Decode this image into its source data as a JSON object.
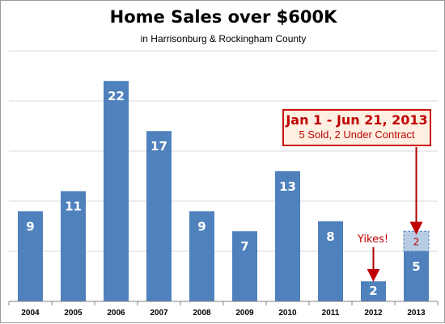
{
  "chart_data": {
    "type": "bar",
    "title": "Home Sales over $600K",
    "subtitle": "in Harrisonburg & Rockingham County",
    "categories": [
      "2004",
      "2005",
      "2006",
      "2007",
      "2008",
      "2009",
      "2010",
      "2011",
      "2012",
      "2013"
    ],
    "values": [
      9,
      11,
      22,
      17,
      9,
      7,
      13,
      8,
      2,
      5
    ],
    "stacked_extra": {
      "category": "2013",
      "value": 2,
      "label": "2"
    },
    "ylim": [
      0,
      25
    ],
    "grid": true,
    "xlabel": "",
    "ylabel": "",
    "colors": {
      "bar": "#4f81bd",
      "extra_fill": "#b8cce4",
      "extra_border": "#4f81bd",
      "accent": "#c00000",
      "callout_bg": "#fdf0e2"
    }
  },
  "annotations": {
    "callout_title": "Jan 1 - Jun 21, 2013",
    "callout_sub": "5 Sold, 2 Under Contract",
    "yikes": "Yikes!"
  }
}
